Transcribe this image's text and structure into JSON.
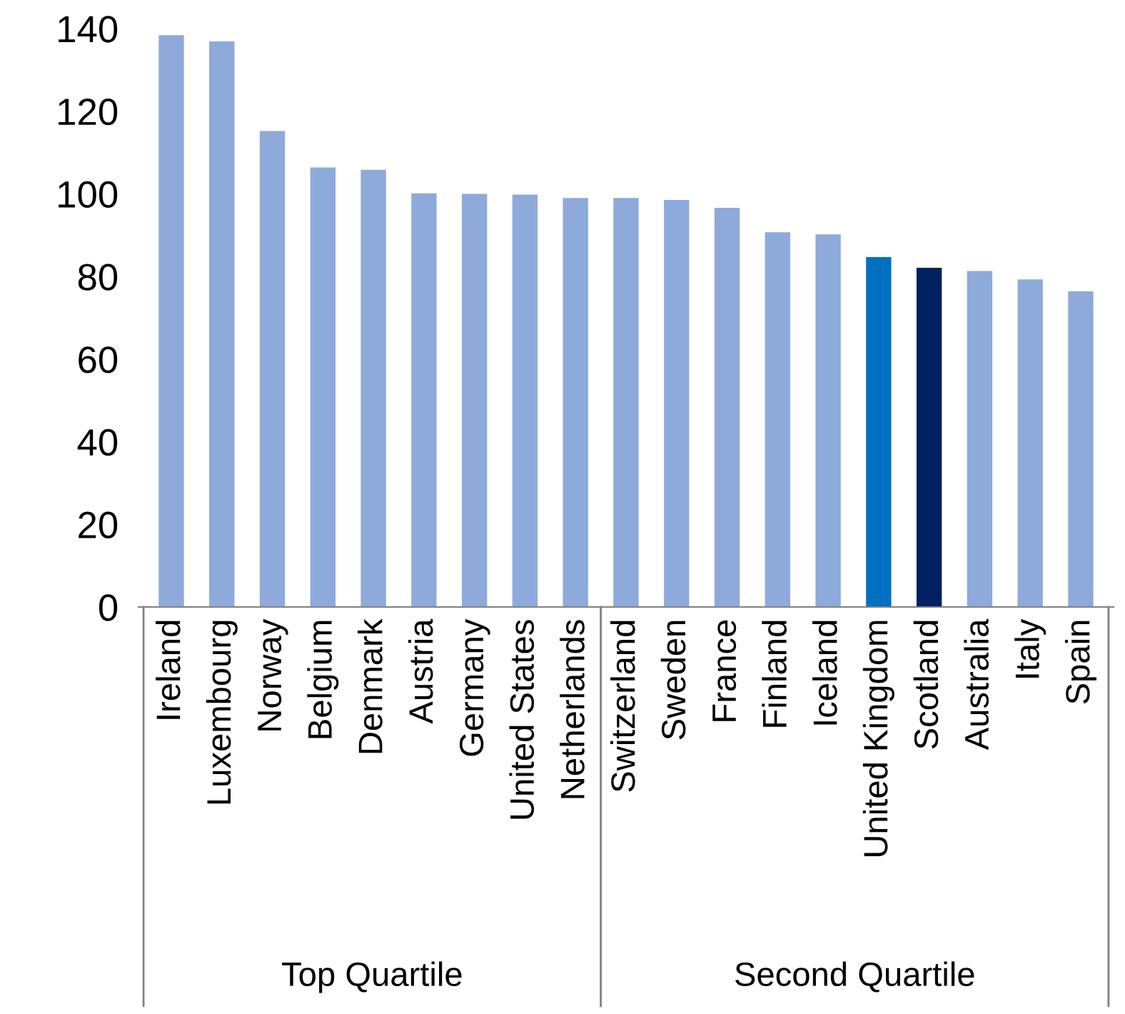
{
  "chart_data": {
    "type": "bar",
    "categories": [
      "Ireland",
      "Luxembourg",
      "Norway",
      "Belgium",
      "Denmark",
      "Austria",
      "Germany",
      "United States",
      "Netherlands",
      "Switzerland",
      "Sweden",
      "France",
      "Finland",
      "Iceland",
      "United Kingdom",
      "Scotland",
      "Australia",
      "Italy",
      "Spain"
    ],
    "values": [
      138.4,
      136.9,
      115.2,
      106.4,
      105.8,
      100.1,
      100,
      99.8,
      99,
      99,
      98.5,
      96.6,
      90.7,
      90.2,
      84.7,
      82.1,
      81.3,
      79.3,
      76.4
    ],
    "colors": [
      "#8eaadb",
      "#8eaadb",
      "#8eaadb",
      "#8eaadb",
      "#8eaadb",
      "#8eaadb",
      "#8eaadb",
      "#8eaadb",
      "#8eaadb",
      "#8eaadb",
      "#8eaadb",
      "#8eaadb",
      "#8eaadb",
      "#8eaadb",
      "#0070c0",
      "#002060",
      "#8eaadb",
      "#8eaadb",
      "#8eaadb"
    ],
    "ylim": [
      0,
      140
    ],
    "yticks": [
      0,
      20,
      40,
      60,
      80,
      100,
      120,
      140
    ],
    "grid": false,
    "legend": false,
    "annotations": [
      "Top Quartile",
      "Second Quartile"
    ]
  }
}
